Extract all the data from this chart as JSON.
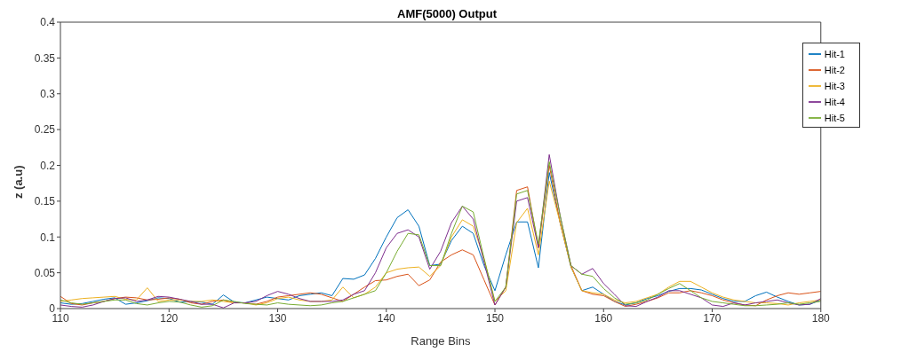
{
  "chart_data": {
    "type": "line",
    "title": "AMF(5000) Output",
    "xlabel": "Range Bins",
    "ylabel": "z (a.u)",
    "x": [
      110,
      111,
      112,
      113,
      114,
      115,
      116,
      117,
      118,
      119,
      120,
      121,
      122,
      123,
      124,
      125,
      126,
      127,
      128,
      129,
      130,
      131,
      132,
      133,
      134,
      135,
      136,
      137,
      138,
      139,
      140,
      141,
      142,
      143,
      144,
      145,
      146,
      147,
      148,
      149,
      150,
      151,
      152,
      153,
      154,
      155,
      156,
      157,
      158,
      159,
      160,
      161,
      162,
      163,
      164,
      165,
      166,
      167,
      168,
      169,
      170,
      171,
      172,
      173,
      174,
      175,
      176,
      177,
      178,
      179,
      180
    ],
    "series": [
      {
        "name": "Hit-1",
        "color": "#0072bd",
        "values": [
          0.008,
          0.006,
          0.007,
          0.01,
          0.013,
          0.015,
          0.006,
          0.008,
          0.011,
          0.015,
          0.014,
          0.009,
          0.01,
          0.009,
          0.006,
          0.019,
          0.009,
          0.008,
          0.012,
          0.016,
          0.014,
          0.012,
          0.018,
          0.02,
          0.022,
          0.018,
          0.042,
          0.041,
          0.047,
          0.07,
          0.1,
          0.127,
          0.138,
          0.115,
          0.06,
          0.062,
          0.095,
          0.115,
          0.105,
          0.06,
          0.025,
          0.075,
          0.121,
          0.121,
          0.057,
          0.19,
          0.12,
          0.058,
          0.025,
          0.03,
          0.02,
          0.01,
          0.005,
          0.008,
          0.014,
          0.018,
          0.024,
          0.028,
          0.028,
          0.026,
          0.02,
          0.014,
          0.01,
          0.01,
          0.018,
          0.023,
          0.016,
          0.01,
          0.005,
          0.006,
          0.012
        ]
      },
      {
        "name": "Hit-2",
        "color": "#d95319",
        "values": [
          0.017,
          0.007,
          0.005,
          0.008,
          0.01,
          0.014,
          0.016,
          0.015,
          0.012,
          0.013,
          0.015,
          0.013,
          0.008,
          0.006,
          0.01,
          0.012,
          0.008,
          0.008,
          0.006,
          0.01,
          0.016,
          0.018,
          0.02,
          0.022,
          0.02,
          0.015,
          0.01,
          0.02,
          0.03,
          0.039,
          0.04,
          0.045,
          0.048,
          0.032,
          0.04,
          0.065,
          0.075,
          0.082,
          0.075,
          0.04,
          0.005,
          0.03,
          0.165,
          0.17,
          0.085,
          0.2,
          0.12,
          0.06,
          0.025,
          0.02,
          0.018,
          0.01,
          0.003,
          0.006,
          0.01,
          0.015,
          0.022,
          0.022,
          0.025,
          0.022,
          0.018,
          0.012,
          0.008,
          0.005,
          0.004,
          0.012,
          0.018,
          0.022,
          0.02,
          0.022,
          0.024
        ]
      },
      {
        "name": "Hit-3",
        "color": "#edb120",
        "values": [
          0.01,
          0.012,
          0.014,
          0.015,
          0.016,
          0.017,
          0.013,
          0.012,
          0.029,
          0.01,
          0.012,
          0.012,
          0.01,
          0.01,
          0.012,
          0.01,
          0.008,
          0.008,
          0.005,
          0.008,
          0.014,
          0.016,
          0.012,
          0.01,
          0.01,
          0.012,
          0.03,
          0.015,
          0.02,
          0.03,
          0.05,
          0.055,
          0.057,
          0.058,
          0.045,
          0.06,
          0.1,
          0.124,
          0.115,
          0.07,
          0.01,
          0.025,
          0.12,
          0.14,
          0.075,
          0.178,
          0.12,
          0.058,
          0.025,
          0.022,
          0.02,
          0.012,
          0.008,
          0.01,
          0.015,
          0.02,
          0.03,
          0.038,
          0.038,
          0.03,
          0.022,
          0.016,
          0.012,
          0.01,
          0.008,
          0.008,
          0.007,
          0.005,
          0.008,
          0.01,
          0.012
        ]
      },
      {
        "name": "Hit-4",
        "color": "#7e2f8e",
        "values": [
          0.005,
          0.003,
          0.002,
          0.005,
          0.01,
          0.014,
          0.015,
          0.01,
          0.012,
          0.017,
          0.016,
          0.013,
          0.01,
          0.006,
          0.006,
          0.001,
          0.008,
          0.008,
          0.01,
          0.018,
          0.024,
          0.02,
          0.014,
          0.01,
          0.01,
          0.01,
          0.012,
          0.02,
          0.025,
          0.05,
          0.085,
          0.105,
          0.11,
          0.1,
          0.055,
          0.08,
          0.12,
          0.143,
          0.125,
          0.065,
          0.005,
          0.03,
          0.15,
          0.155,
          0.085,
          0.215,
          0.13,
          0.06,
          0.048,
          0.056,
          0.035,
          0.02,
          0.004,
          0.003,
          0.01,
          0.016,
          0.025,
          0.025,
          0.02,
          0.015,
          0.005,
          0.003,
          0.008,
          0.005,
          0.008,
          0.01,
          0.012,
          0.008,
          0.005,
          0.006,
          0.014
        ]
      },
      {
        "name": "Hit-5",
        "color": "#77ac30",
        "values": [
          0.012,
          0.008,
          0.006,
          0.008,
          0.01,
          0.012,
          0.012,
          0.007,
          0.005,
          0.008,
          0.01,
          0.009,
          0.005,
          0.002,
          0.004,
          0.012,
          0.01,
          0.007,
          0.006,
          0.005,
          0.008,
          0.006,
          0.005,
          0.004,
          0.005,
          0.008,
          0.01,
          0.015,
          0.02,
          0.025,
          0.05,
          0.08,
          0.105,
          0.103,
          0.06,
          0.06,
          0.105,
          0.143,
          0.135,
          0.07,
          0.01,
          0.03,
          0.16,
          0.165,
          0.09,
          0.205,
          0.13,
          0.06,
          0.048,
          0.045,
          0.028,
          0.015,
          0.006,
          0.008,
          0.012,
          0.02,
          0.028,
          0.035,
          0.025,
          0.015,
          0.01,
          0.008,
          0.006,
          0.004,
          0.004,
          0.005,
          0.006,
          0.008,
          0.006,
          0.008,
          0.01
        ]
      }
    ],
    "xlim": [
      110,
      180
    ],
    "xticks": [
      110,
      120,
      130,
      140,
      150,
      160,
      170,
      180
    ],
    "ylim": [
      0,
      0.4
    ],
    "yticks": [
      0,
      0.05,
      0.1,
      0.15,
      0.2,
      0.25,
      0.3,
      0.35,
      0.4
    ],
    "grid": false,
    "legend": "top right",
    "marker": "none",
    "line_style": "solid"
  }
}
